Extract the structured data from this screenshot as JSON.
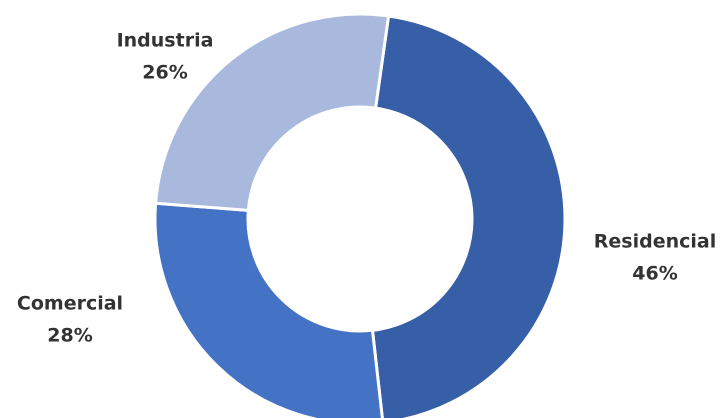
{
  "chart_data": {
    "type": "donut",
    "categories": [
      "Residencial",
      "Comercial",
      "Industria"
    ],
    "values": [
      46,
      28,
      26
    ],
    "value_labels": [
      "46%",
      "28%",
      "26%"
    ],
    "colors": [
      "#365fa8",
      "#4472c4",
      "#a9b8dd"
    ]
  }
}
